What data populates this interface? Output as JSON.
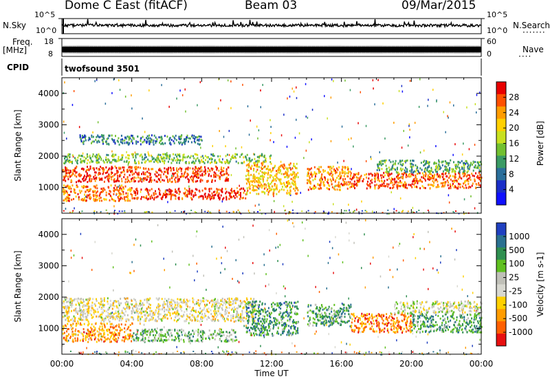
{
  "header": {
    "radar": "Dome C East (fitACF)",
    "beam": "Beam 03",
    "date": "09/Mar/2015"
  },
  "top_panels": {
    "nsky_label": "N.Sky",
    "nsky_ticks": [
      "10^5",
      "10^0"
    ],
    "nsearch_label": "N.Search",
    "freq_label_1": "Freq.",
    "freq_label_2": "[MHz]",
    "freq_ticks": [
      "18",
      "8"
    ],
    "nave_label": "Nave",
    "nave_ticks": [
      "60",
      "0"
    ],
    "cpid_label": "CPID",
    "cpid_value": "twofsound 3501",
    "colors": {
      "trace": "#000000"
    }
  },
  "chart_data": [
    {
      "type": "heatmap",
      "name": "Power",
      "ylabel": "Slant Range [km]",
      "ylim": [
        180,
        4500
      ],
      "yticks": [
        1000,
        2000,
        3000,
        4000
      ],
      "xlim": [
        0,
        24
      ],
      "colorbar_label": "Power [dB]",
      "colorbar_ticks": [
        "28",
        "24",
        "20",
        "16",
        "12",
        "8",
        "4"
      ],
      "colors": [
        "#e80000",
        "#ff5000",
        "#ff9c00",
        "#ffd000",
        "#c8e020",
        "#72c030",
        "#3a9a64",
        "#2a6e9a",
        "#1a2ec8",
        "#1010ff"
      ],
      "regions": [
        {
          "t0": 0.0,
          "t1": 4.0,
          "r0": 600,
          "r1": 1100,
          "level": 0.78
        },
        {
          "t0": 0.0,
          "t1": 9.5,
          "r0": 1200,
          "r1": 1700,
          "level": 0.9
        },
        {
          "t0": 4.0,
          "t1": 10.5,
          "r0": 650,
          "r1": 1000,
          "level": 0.92
        },
        {
          "t0": 0.0,
          "t1": 12.0,
          "r0": 1800,
          "r1": 2100,
          "level": 0.45
        },
        {
          "t0": 10.5,
          "t1": 13.5,
          "r0": 800,
          "r1": 1800,
          "level": 0.7
        },
        {
          "t0": 14.0,
          "t1": 16.5,
          "r0": 950,
          "r1": 1700,
          "level": 0.75
        },
        {
          "t0": 16.5,
          "t1": 24.0,
          "r0": 1000,
          "r1": 1500,
          "level": 0.85
        },
        {
          "t0": 18.0,
          "t1": 24.0,
          "r0": 1500,
          "r1": 1900,
          "level": 0.4
        },
        {
          "t0": 1.0,
          "t1": 8.0,
          "r0": 2400,
          "r1": 2700,
          "level": 0.3
        }
      ]
    },
    {
      "type": "heatmap",
      "name": "Velocity",
      "ylabel": "Slant Range [km]",
      "xlabel": "Time UT",
      "ylim": [
        180,
        4500
      ],
      "yticks": [
        1000,
        2000,
        3000,
        4000
      ],
      "xlim": [
        0,
        24
      ],
      "xticks": [
        "00:00",
        "04:00",
        "08:00",
        "12:00",
        "16:00",
        "20:00",
        "00:00"
      ],
      "colorbar_label": "Velocity [m s-1]",
      "colorbar_ticks": [
        "1000",
        "500",
        "100",
        "25",
        "-25",
        "-100",
        "-500",
        "-1000"
      ],
      "colors": [
        "#2040c0",
        "#2a7090",
        "#2f8f50",
        "#60c020",
        "#c0c0b8",
        "#d8d8d0",
        "#ffd000",
        "#ff9c00",
        "#ff6000",
        "#e81010"
      ],
      "regions": [
        {
          "t0": 0.0,
          "t1": 11.0,
          "r0": 1250,
          "r1": 2000,
          "level": 0.45
        },
        {
          "t0": 0.0,
          "t1": 4.0,
          "r0": 600,
          "r1": 1200,
          "level": 0.25
        },
        {
          "t0": 4.0,
          "t1": 10.0,
          "r0": 600,
          "r1": 1000,
          "level": 0.65
        },
        {
          "t0": 10.5,
          "t1": 13.5,
          "r0": 800,
          "r1": 1900,
          "level": 0.75
        },
        {
          "t0": 14.0,
          "t1": 16.5,
          "r0": 1100,
          "r1": 1800,
          "level": 0.7
        },
        {
          "t0": 16.5,
          "t1": 20.0,
          "r0": 900,
          "r1": 1500,
          "level": 0.2
        },
        {
          "t0": 20.0,
          "t1": 24.0,
          "r0": 900,
          "r1": 1500,
          "level": 0.72
        },
        {
          "t0": 19.0,
          "t1": 24.0,
          "r0": 1500,
          "r1": 1900,
          "level": 0.5
        }
      ]
    }
  ]
}
